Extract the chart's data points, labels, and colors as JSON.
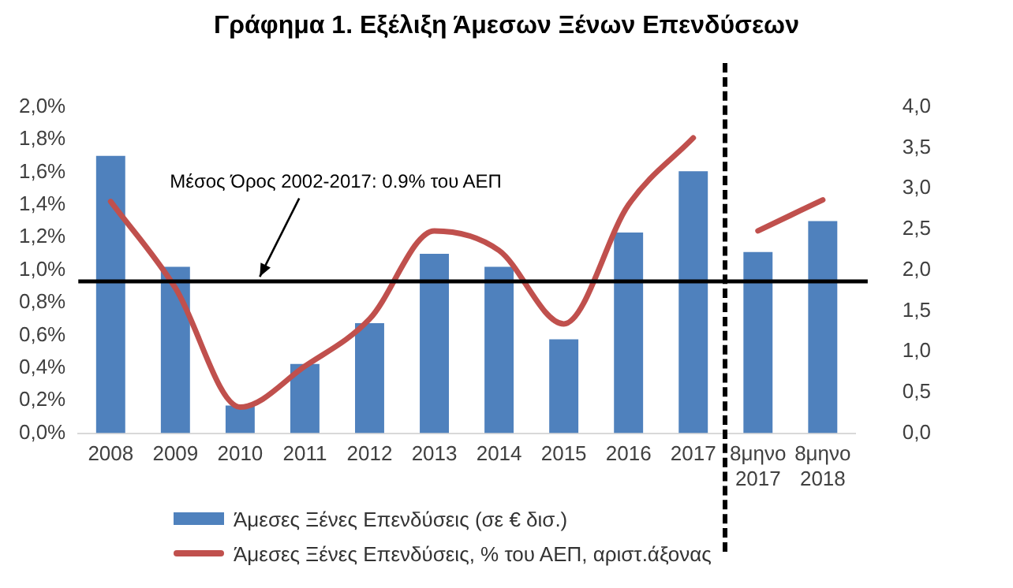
{
  "chart_data": {
    "type": "bar",
    "title": "Γράφημα 1. Εξέλιξη Άμεσων Ξένων Επενδύσεων",
    "categories": [
      "2008",
      "2009",
      "2010",
      "2011",
      "2012",
      "2013",
      "2014",
      "2015",
      "2016",
      "2017",
      "8μηνο 2017",
      "8μηνο 2018"
    ],
    "series": [
      {
        "name": "Άμεσες Ξένες Επενδύσεις (σε € δισ.)",
        "axis": "y2",
        "color": "#4f81bd",
        "values": [
          3.4,
          2.04,
          0.34,
          0.85,
          1.35,
          2.2,
          2.04,
          1.15,
          2.46,
          3.21,
          2.22,
          2.6
        ]
      },
      {
        "name": "Άμεσες Ξένες Επενδύσεις, % του ΑΕΠ, αριστ.άξονας",
        "type": "line",
        "axis": "y",
        "color": "#c0504d",
        "values": [
          1.42,
          0.89,
          0.16,
          0.41,
          0.7,
          1.24,
          1.12,
          0.67,
          1.4,
          1.81,
          null,
          null
        ]
      },
      {
        "type": "line",
        "axis": "y",
        "color": "#c0504d",
        "values": [
          null,
          null,
          null,
          null,
          null,
          null,
          null,
          null,
          null,
          null,
          1.24,
          1.43
        ]
      }
    ],
    "ylim": [
      0,
      2
    ],
    "yticks": [
      {
        "value": 0,
        "label": "0,0%"
      },
      {
        "value": 0.2,
        "label": "0,2%"
      },
      {
        "value": 0.4,
        "label": "0,4%"
      },
      {
        "value": 0.6,
        "label": "0,6%"
      },
      {
        "value": 0.8,
        "label": "0,8%"
      },
      {
        "value": 1,
        "label": "1,0%"
      },
      {
        "value": 1.2,
        "label": "1,2%"
      },
      {
        "value": 1.4,
        "label": "1,4%"
      },
      {
        "value": 1.6,
        "label": "1,6%"
      },
      {
        "value": 1.8,
        "label": "1,8%"
      },
      {
        "value": 2,
        "label": "2,0%"
      }
    ],
    "y2lim": [
      0,
      4
    ],
    "y2ticks": [
      {
        "value": 0,
        "label": "0,0"
      },
      {
        "value": 0.5,
        "label": "0,5"
      },
      {
        "value": 1,
        "label": "1,0"
      },
      {
        "value": 1.5,
        "label": "1,5"
      },
      {
        "value": 2,
        "label": "2,0"
      },
      {
        "value": 2.5,
        "label": "2,5"
      },
      {
        "value": 3,
        "label": "3,0"
      },
      {
        "value": 3.5,
        "label": "3,5"
      },
      {
        "value": 4,
        "label": "4,0"
      }
    ],
    "ref_lines": [
      {
        "axis": "y",
        "value": 0.93,
        "label": "Μέσος Όρος 2002-2017: 0.9% του ΑΕΠ",
        "color": "#000000"
      }
    ],
    "grid": false,
    "legend": "bottom"
  }
}
